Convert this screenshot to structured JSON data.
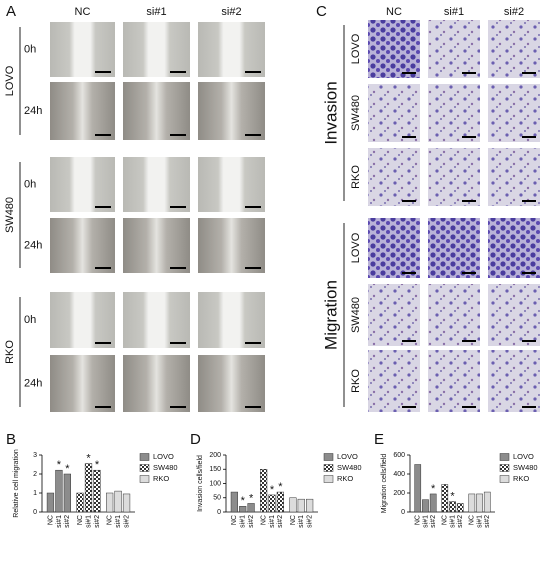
{
  "panel_a": {
    "letter": "A",
    "columns": [
      "NC",
      "si#1",
      "si#2"
    ],
    "groups": [
      {
        "name": "LOVO",
        "times": [
          "0h",
          "24h"
        ]
      },
      {
        "name": "SW480",
        "times": [
          "0h",
          "24h"
        ]
      },
      {
        "name": "RKO",
        "times": [
          "0h",
          "24h"
        ]
      }
    ]
  },
  "panel_c": {
    "letter": "C",
    "columns": [
      "NC",
      "si#1",
      "si#2"
    ],
    "sections": [
      {
        "name": "Invasion",
        "lines": [
          "LOVO",
          "SW480",
          "RKO"
        ]
      },
      {
        "name": "Migration",
        "lines": [
          "LOVO",
          "SW480",
          "RKO"
        ]
      }
    ]
  },
  "chart_data": [
    {
      "type": "bar",
      "panel": "B",
      "y_label": "Relative cell migration",
      "categories": [
        "NC",
        "si#1",
        "si#2"
      ],
      "ylim": [
        0,
        3
      ],
      "yticks": [
        0,
        1,
        2,
        3
      ],
      "marker": "*",
      "series": [
        {
          "name": "LOVO",
          "color": "#8c8c8c",
          "values": [
            1,
            2.2,
            2.0
          ],
          "significant": [
            false,
            true,
            true
          ]
        },
        {
          "name": "SW480",
          "color": "#555555",
          "pattern": "checker",
          "values": [
            1,
            2.55,
            2.2
          ],
          "significant": [
            false,
            true,
            true
          ]
        },
        {
          "name": "RKO",
          "color": "#dcdcdc",
          "values": [
            1,
            1.1,
            0.95
          ],
          "significant": [
            false,
            false,
            false
          ]
        }
      ]
    },
    {
      "type": "bar",
      "panel": "D",
      "y_label": "Invasion cells/field",
      "categories": [
        "NC",
        "si#1",
        "si#2"
      ],
      "ylim": [
        0,
        200
      ],
      "yticks": [
        0,
        50,
        100,
        150,
        200
      ],
      "marker": "*",
      "series": [
        {
          "name": "LOVO",
          "color": "#8c8c8c",
          "values": [
            70,
            20,
            30
          ],
          "significant": [
            false,
            true,
            true
          ]
        },
        {
          "name": "SW480",
          "color": "#555555",
          "pattern": "checker",
          "values": [
            150,
            60,
            70
          ],
          "significant": [
            false,
            true,
            true
          ]
        },
        {
          "name": "RKO",
          "color": "#dcdcdc",
          "values": [
            50,
            45,
            45
          ],
          "significant": [
            false,
            false,
            false
          ]
        }
      ]
    },
    {
      "type": "bar",
      "panel": "E",
      "y_label": "Migration cells/field",
      "categories": [
        "NC",
        "si#1",
        "si#2"
      ],
      "ylim": [
        0,
        600
      ],
      "yticks": [
        0,
        200,
        400,
        600
      ],
      "marker": "*",
      "series": [
        {
          "name": "LOVO",
          "color": "#8c8c8c",
          "values": [
            500,
            130,
            190
          ],
          "significant": [
            false,
            false,
            true
          ]
        },
        {
          "name": "SW480",
          "color": "#555555",
          "pattern": "checker",
          "values": [
            290,
            110,
            90
          ],
          "significant": [
            false,
            true,
            false
          ]
        },
        {
          "name": "RKO",
          "color": "#dcdcdc",
          "values": [
            190,
            190,
            210
          ],
          "significant": [
            false,
            false,
            false
          ]
        }
      ]
    }
  ]
}
